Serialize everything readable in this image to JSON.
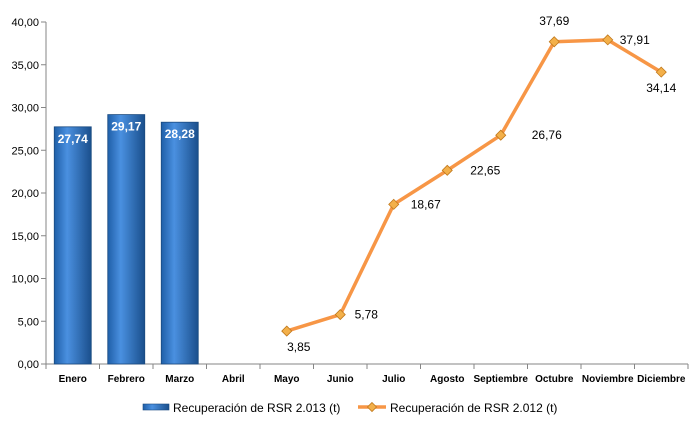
{
  "chart_data": {
    "type": "bar",
    "categories": [
      "Enero",
      "Febrero",
      "Marzo",
      "Abril",
      "Mayo",
      "Junio",
      "Julio",
      "Agosto",
      "Septiembre",
      "Octubre",
      "Noviembre",
      "Diciembre"
    ],
    "series": [
      {
        "name": "Recuperación de RSR 2.013 (t)",
        "type": "bar",
        "color": "#2e75c7",
        "values": [
          27.74,
          29.17,
          28.28,
          null,
          null,
          null,
          null,
          null,
          null,
          null,
          null,
          null
        ],
        "labels": [
          "27,74",
          "29,17",
          "28,28",
          null,
          null,
          null,
          null,
          null,
          null,
          null,
          null,
          null
        ]
      },
      {
        "name": "Recuperación de RSR 2.012 (t)",
        "type": "line",
        "color": "#f79646",
        "marker_color": "#f3b04a",
        "values": [
          null,
          null,
          null,
          null,
          3.85,
          5.78,
          18.67,
          22.65,
          26.76,
          37.69,
          37.91,
          34.14
        ],
        "labels": [
          null,
          null,
          null,
          null,
          "3,85",
          "5,78",
          "18,67",
          "22,65",
          "26,76",
          "37,69",
          "37,91",
          "34,14"
        ]
      }
    ],
    "y_ticks": [
      "0,00",
      "5,00",
      "10,00",
      "15,00",
      "20,00",
      "25,00",
      "30,00",
      "35,00",
      "40,00"
    ],
    "ylim": [
      0,
      40
    ],
    "grid": false,
    "legend_position": "bottom",
    "title": "",
    "xlabel": "",
    "ylabel": ""
  }
}
